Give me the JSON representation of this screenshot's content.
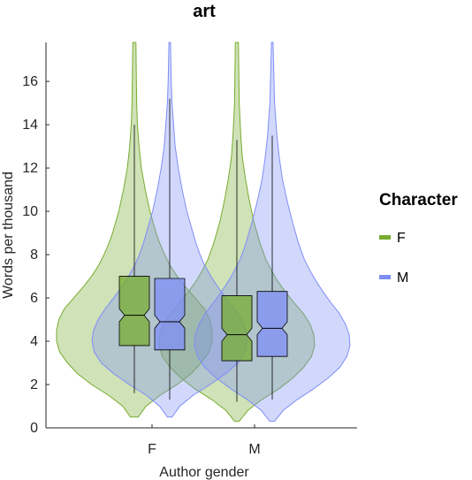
{
  "chart_data": {
    "type": "violin",
    "title": "art",
    "xlabel": "Author gender",
    "ylabel": "Words per thousand",
    "categories": [
      "F",
      "M"
    ],
    "ylim": [
      0,
      17.8
    ],
    "yticks": [
      0,
      2,
      4,
      6,
      8,
      10,
      12,
      14,
      16
    ],
    "legend": {
      "title": "Character",
      "position": "right"
    },
    "series": [
      {
        "name": "F",
        "color": "#77ac30",
        "groups": [
          {
            "category": "F",
            "q1": 3.8,
            "median": 5.2,
            "q3": 7.0,
            "notch_low": 4.9,
            "notch_high": 5.5,
            "whisker_low": 1.6,
            "whisker_high": 14.0,
            "density": [
              [
                0.5,
                0.05
              ],
              [
                1.0,
                0.15
              ],
              [
                1.5,
                0.33
              ],
              [
                2.0,
                0.55
              ],
              [
                2.5,
                0.73
              ],
              [
                3.0,
                0.86
              ],
              [
                3.5,
                0.96
              ],
              [
                4.0,
                1.0
              ],
              [
                4.5,
                1.0
              ],
              [
                5.0,
                0.97
              ],
              [
                5.5,
                0.9
              ],
              [
                6.0,
                0.78
              ],
              [
                6.5,
                0.66
              ],
              [
                7.0,
                0.55
              ],
              [
                7.5,
                0.46
              ],
              [
                8.0,
                0.39
              ],
              [
                8.5,
                0.33
              ],
              [
                9.0,
                0.28
              ],
              [
                10.0,
                0.2
              ],
              [
                11.0,
                0.14
              ],
              [
                12.0,
                0.09
              ],
              [
                13.0,
                0.06
              ],
              [
                14.0,
                0.04
              ],
              [
                15.0,
                0.03
              ],
              [
                17.8,
                0.02
              ]
            ]
          },
          {
            "category": "M",
            "q1": 3.1,
            "median": 4.3,
            "q3": 6.1,
            "notch_low": 4.0,
            "notch_high": 4.6,
            "whisker_low": 1.2,
            "whisker_high": 13.3,
            "density": [
              [
                0.3,
                0.03
              ],
              [
                0.8,
                0.14
              ],
              [
                1.3,
                0.32
              ],
              [
                1.8,
                0.54
              ],
              [
                2.3,
                0.72
              ],
              [
                2.8,
                0.86
              ],
              [
                3.3,
                0.96
              ],
              [
                3.8,
                1.0
              ],
              [
                4.3,
                0.99
              ],
              [
                4.8,
                0.94
              ],
              [
                5.3,
                0.85
              ],
              [
                5.8,
                0.73
              ],
              [
                6.3,
                0.62
              ],
              [
                6.8,
                0.52
              ],
              [
                7.3,
                0.44
              ],
              [
                7.8,
                0.37
              ],
              [
                8.5,
                0.3
              ],
              [
                9.5,
                0.22
              ],
              [
                10.5,
                0.16
              ],
              [
                11.5,
                0.11
              ],
              [
                12.5,
                0.07
              ],
              [
                13.5,
                0.05
              ],
              [
                15.0,
                0.03
              ],
              [
                17.8,
                0.02
              ]
            ]
          }
        ]
      },
      {
        "name": "M",
        "color": "#7f8ef7",
        "groups": [
          {
            "category": "F",
            "q1": 3.6,
            "median": 4.9,
            "q3": 6.9,
            "notch_low": 4.6,
            "notch_high": 5.2,
            "whisker_low": 1.3,
            "whisker_high": 15.2,
            "density": [
              [
                0.5,
                0.03
              ],
              [
                1.0,
                0.13
              ],
              [
                1.5,
                0.3
              ],
              [
                2.0,
                0.52
              ],
              [
                2.5,
                0.72
              ],
              [
                3.0,
                0.88
              ],
              [
                3.5,
                0.97
              ],
              [
                4.0,
                1.0
              ],
              [
                4.5,
                0.98
              ],
              [
                5.0,
                0.92
              ],
              [
                5.5,
                0.83
              ],
              [
                6.0,
                0.72
              ],
              [
                6.5,
                0.62
              ],
              [
                7.0,
                0.53
              ],
              [
                7.5,
                0.45
              ],
              [
                8.0,
                0.39
              ],
              [
                8.5,
                0.34
              ],
              [
                9.0,
                0.3
              ],
              [
                10.0,
                0.22
              ],
              [
                11.0,
                0.16
              ],
              [
                12.0,
                0.11
              ],
              [
                13.0,
                0.07
              ],
              [
                14.0,
                0.05
              ],
              [
                15.0,
                0.03
              ],
              [
                16.0,
                0.02
              ],
              [
                17.8,
                0.01
              ]
            ]
          },
          {
            "category": "M",
            "q1": 3.3,
            "median": 4.6,
            "q3": 6.3,
            "notch_low": 4.3,
            "notch_high": 4.9,
            "whisker_low": 1.3,
            "whisker_high": 13.5,
            "density": [
              [
                0.3,
                0.03
              ],
              [
                0.8,
                0.14
              ],
              [
                1.3,
                0.32
              ],
              [
                1.8,
                0.53
              ],
              [
                2.3,
                0.72
              ],
              [
                2.8,
                0.87
              ],
              [
                3.3,
                0.96
              ],
              [
                3.8,
                1.0
              ],
              [
                4.3,
                0.99
              ],
              [
                4.8,
                0.94
              ],
              [
                5.3,
                0.86
              ],
              [
                5.8,
                0.75
              ],
              [
                6.3,
                0.65
              ],
              [
                6.8,
                0.56
              ],
              [
                7.3,
                0.48
              ],
              [
                7.8,
                0.41
              ],
              [
                8.5,
                0.34
              ],
              [
                9.5,
                0.26
              ],
              [
                10.5,
                0.19
              ],
              [
                11.5,
                0.13
              ],
              [
                12.5,
                0.09
              ],
              [
                13.5,
                0.06
              ],
              [
                15.0,
                0.03
              ],
              [
                17.8,
                0.01
              ]
            ]
          }
        ]
      }
    ]
  }
}
